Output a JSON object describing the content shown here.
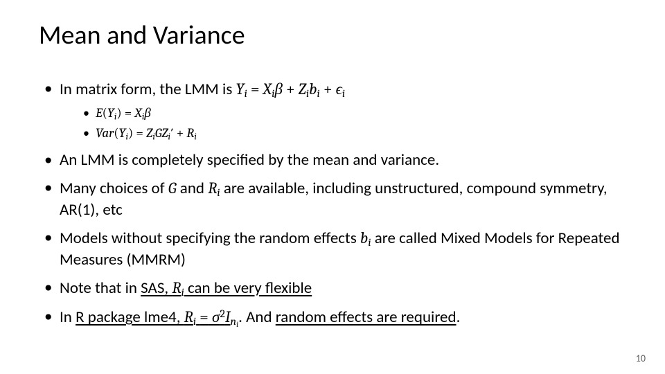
{
  "slide": {
    "title": "Mean and Variance",
    "page_number": "10",
    "bullets": [
      {
        "pre": "In matrix form, the LMM is ",
        "eq": "Y_i = X_i β + Z_i b_i + ϵ_i",
        "sub": [
          {
            "eq": "E(Y_i) = X_i β"
          },
          {
            "eq": "Var(Y_i) = Z_i G Z_i' + R_i"
          }
        ]
      },
      {
        "text": "An LMM is completely specified by the mean and variance."
      },
      {
        "pre": "Many choices of ",
        "mid1": "G",
        "mid2": " and ",
        "mid3": "R_i",
        "post": " are available, including unstructured, compound symmetry, AR(1), etc"
      },
      {
        "pre": "Models without specifying the random effects ",
        "mid1": "b_i",
        "post": " are called Mixed Models for Repeated Measures (MMRM)"
      },
      {
        "pre": "Note that in ",
        "ul1": "SAS, ",
        "mid1": "R_i",
        "ul2": " can be very flexible"
      },
      {
        "pre": "In ",
        "ul1": "R package lme4, ",
        "mid1": "R_i = σ^2 I_{n_i}",
        "post_plain": ".  And ",
        "ul2": "random effects are required",
        "post_plain2": "."
      }
    ]
  },
  "style": {
    "background_color": "#ffffff",
    "text_color": "#000000",
    "title_fontsize": 38,
    "body_fontsize": 23,
    "sub_fontsize": 19,
    "pagenum_color": "#606060",
    "pagenum_fontsize": 14,
    "math_font": "Cambria Math"
  }
}
